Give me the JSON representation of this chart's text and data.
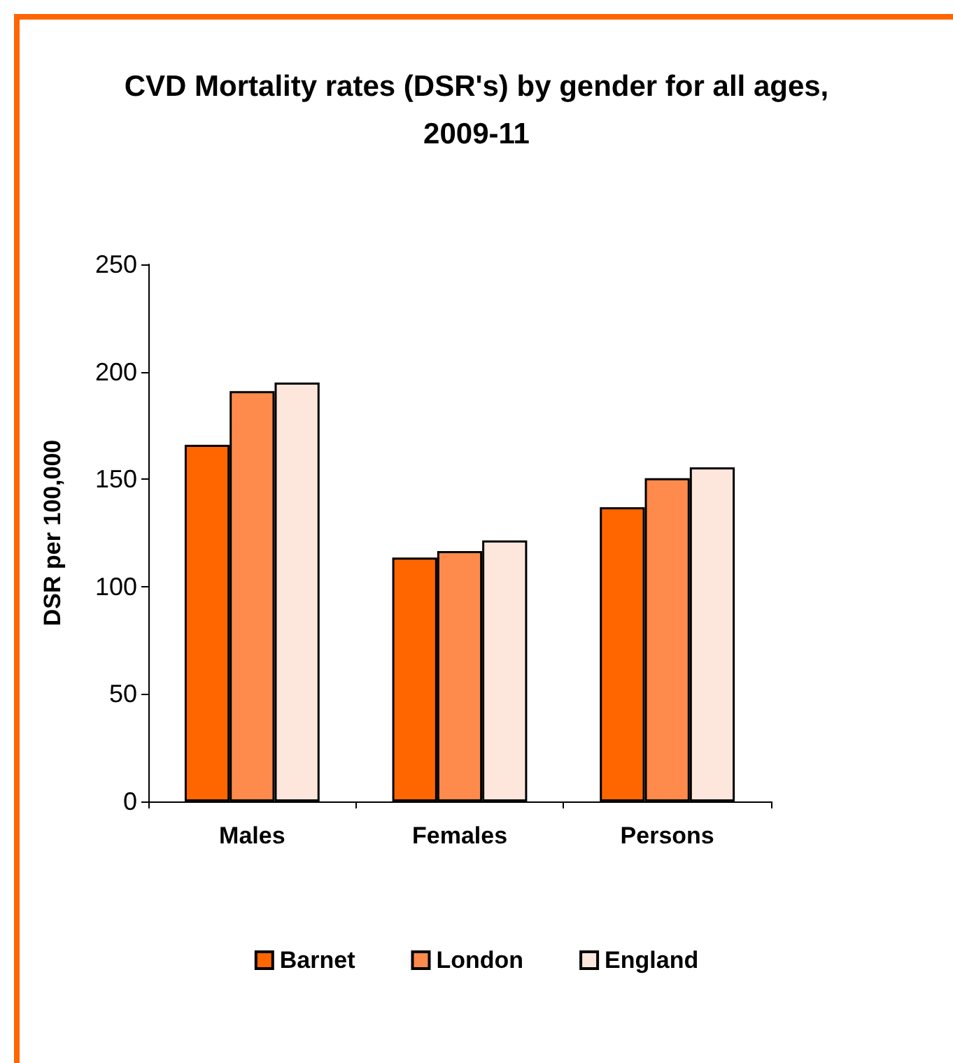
{
  "chart_data": {
    "type": "bar",
    "title": "CVD Mortality rates (DSR's) by gender for all ages,\n2009-11",
    "ylabel": "DSR per 100,000",
    "categories": [
      "Males",
      "Females",
      "Persons"
    ],
    "series": [
      {
        "name": "Barnet",
        "color": "#ff6600",
        "values": [
          166,
          113.5,
          137
        ]
      },
      {
        "name": "London",
        "color": "#fe8a4c",
        "values": [
          191,
          116.5,
          150.5
        ]
      },
      {
        "name": "England",
        "color": "#fde7dc",
        "values": [
          195,
          121.5,
          155.5
        ]
      }
    ],
    "ylim": [
      0,
      250
    ],
    "yticks": [
      0,
      50,
      100,
      150,
      200,
      250
    ],
    "grid": false,
    "legend": "bottom"
  }
}
